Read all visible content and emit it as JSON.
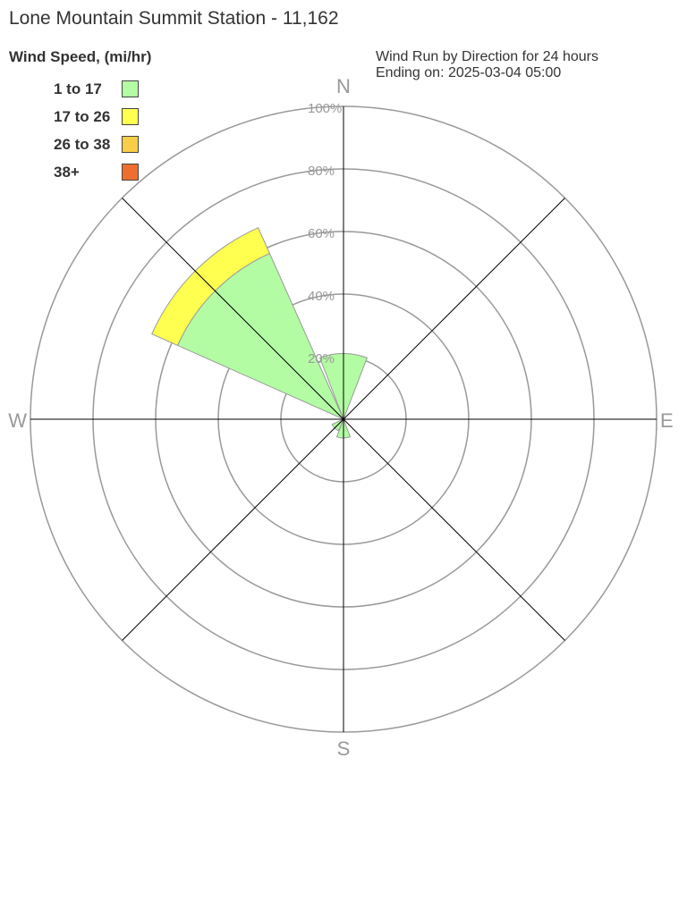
{
  "chart_data": {
    "type": "polar-bar",
    "title": "Lone Mountain Summit Station - 11,162",
    "legend_title": "Wind Speed, (mi/hr)",
    "info_line1": "Wind Run by Direction for 24 hours",
    "info_line2": "Ending on: 2025-03-04 05:00",
    "directions": [
      "N",
      "NE",
      "E",
      "SE",
      "S",
      "SW",
      "W",
      "NW"
    ],
    "compass_labels": {
      "n": "N",
      "e": "E",
      "s": "S",
      "w": "W"
    },
    "radial_ticks": [
      "20%",
      "40%",
      "60%",
      "80%",
      "100%"
    ],
    "rmax": 100,
    "series": [
      {
        "name": "1 to 17",
        "color": "#b3fca4",
        "values": [
          21,
          0,
          0,
          0,
          6,
          4,
          0,
          58
        ]
      },
      {
        "name": "17 to 26",
        "color": "#ffff50",
        "values": [
          0,
          0,
          0,
          0,
          0,
          0,
          0,
          9
        ]
      },
      {
        "name": "26 to 38",
        "color": "#f8cd48",
        "values": [
          0,
          0,
          0,
          0,
          0,
          0,
          0,
          0
        ]
      },
      {
        "name": "38+",
        "color": "#ee6e2e",
        "values": [
          0,
          0,
          0,
          0,
          0,
          0,
          0,
          0
        ]
      }
    ],
    "legend_placement": "top-left"
  }
}
